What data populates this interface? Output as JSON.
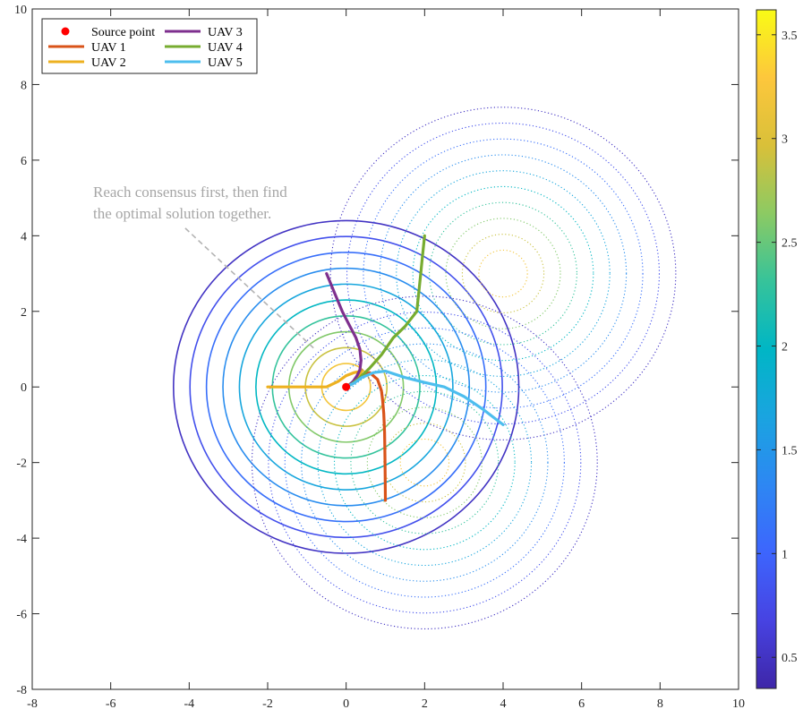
{
  "chart_data": {
    "type": "contour",
    "xlim": [
      -8,
      10
    ],
    "ylim": [
      -8,
      10
    ],
    "xticks": [
      -8,
      -6,
      -4,
      -2,
      0,
      2,
      4,
      6,
      8,
      10
    ],
    "yticks": [
      -8,
      -6,
      -4,
      -2,
      0,
      2,
      4,
      6,
      8,
      10
    ],
    "grid": false,
    "legend_position": "top-left",
    "legend": [
      {
        "label": "Source point",
        "marker": "dot",
        "color": "#ff0000"
      },
      {
        "label": "UAV 1",
        "color": "#d95319"
      },
      {
        "label": "UAV 2",
        "color": "#edb120"
      },
      {
        "label": "UAV 3",
        "color": "#7e2f8e"
      },
      {
        "label": "UAV 4",
        "color": "#77ac30"
      },
      {
        "label": "UAV 5",
        "color": "#4dbeee"
      }
    ],
    "source_point": [
      0,
      0
    ],
    "contour_levels": [
      0.5,
      0.8,
      1.1,
      1.4,
      1.7,
      2.0,
      2.3,
      2.6,
      2.9,
      3.2,
      3.5
    ],
    "contour_sets": [
      {
        "center": [
          0,
          0
        ],
        "style": "solid",
        "outer_radius": 4.4,
        "spacing": 0.42,
        "count": 10
      },
      {
        "center": [
          4,
          3
        ],
        "style": "dotted",
        "outer_radius": 4.4,
        "spacing": 0.42,
        "count": 10
      },
      {
        "center": [
          2,
          -2
        ],
        "style": "dotted",
        "outer_radius": 4.4,
        "spacing": 0.42,
        "count": 10
      }
    ],
    "series": [
      {
        "name": "UAV 1",
        "color": "#d95319",
        "x": [
          1.0,
          0.99,
          0.98,
          0.96,
          0.93,
          0.9,
          0.8,
          0.6,
          0.4,
          0.2,
          0.0
        ],
        "y": [
          -3.0,
          -2.0,
          -1.2,
          -0.7,
          -0.35,
          -0.1,
          0.2,
          0.38,
          0.3,
          0.15,
          0.0
        ]
      },
      {
        "name": "UAV 2",
        "color": "#edb120",
        "x": [
          -2.0,
          -1.5,
          -1.0,
          -0.5,
          -0.2,
          0.0,
          0.2,
          0.4,
          0.3,
          0.15,
          0.0
        ],
        "y": [
          0.0,
          0.0,
          0.0,
          0.0,
          0.15,
          0.3,
          0.38,
          0.42,
          0.25,
          0.1,
          0.0
        ]
      },
      {
        "name": "UAV 3",
        "color": "#7e2f8e",
        "x": [
          -0.5,
          -0.3,
          -0.1,
          0.1,
          0.25,
          0.35,
          0.38,
          0.35,
          0.28,
          0.18,
          0.08,
          0.0
        ],
        "y": [
          3.0,
          2.5,
          2.0,
          1.6,
          1.3,
          1.0,
          0.7,
          0.45,
          0.3,
          0.15,
          0.05,
          0.0
        ]
      },
      {
        "name": "UAV 4",
        "color": "#77ac30",
        "x": [
          2.0,
          1.95,
          1.9,
          1.85,
          1.8,
          1.5,
          1.2,
          0.9,
          0.6,
          0.35,
          0.15,
          0.0
        ],
        "y": [
          4.0,
          3.5,
          3.0,
          2.5,
          2.0,
          1.6,
          1.3,
          0.85,
          0.5,
          0.25,
          0.08,
          0.0
        ]
      },
      {
        "name": "UAV 5",
        "color": "#4dbeee",
        "x": [
          4.0,
          3.5,
          3.0,
          2.5,
          2.0,
          1.5,
          1.0,
          0.7,
          0.4,
          0.2,
          0.0
        ],
        "y": [
          -1.0,
          -0.6,
          -0.25,
          0.0,
          0.12,
          0.25,
          0.42,
          0.38,
          0.25,
          0.1,
          0.0
        ]
      }
    ],
    "annotation": {
      "lines": [
        "Reach consensus first, then find",
        "the optimal solution together."
      ],
      "arrow_from": [
        -4.1,
        4.2
      ],
      "arrow_to": [
        -0.8,
        1.0
      ]
    },
    "colorbar": {
      "min": 0.35,
      "max": 3.62,
      "ticks": [
        0.5,
        1,
        1.5,
        2,
        2.5,
        3,
        3.5
      ],
      "tick_labels": [
        "0.5",
        "1",
        "1.5",
        "2",
        "2.5",
        "3",
        "3.5"
      ],
      "colormap": "parula"
    }
  }
}
